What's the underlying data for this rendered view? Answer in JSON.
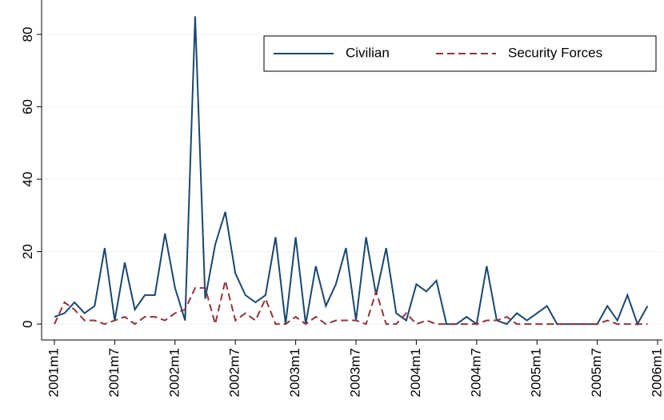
{
  "chart_data": {
    "type": "line",
    "categories": [
      "2001m1",
      null,
      null,
      null,
      null,
      null,
      "2001m7",
      null,
      null,
      null,
      null,
      null,
      "2002m1",
      null,
      null,
      null,
      null,
      null,
      "2002m7",
      null,
      null,
      null,
      null,
      null,
      "2003m1",
      null,
      null,
      null,
      null,
      null,
      "2003m7",
      null,
      null,
      null,
      null,
      null,
      "2004m1",
      null,
      null,
      null,
      null,
      null,
      "2004m7",
      null,
      null,
      null,
      null,
      null,
      "2005m1",
      null,
      null,
      null,
      null,
      null,
      "2005m7",
      null,
      null,
      null,
      null,
      null,
      "2006m1"
    ],
    "series": [
      {
        "name": "Civilian",
        "color": "#1a476f",
        "dash": false,
        "values": [
          2,
          3,
          6,
          3,
          5,
          21,
          1,
          17,
          4,
          8,
          8,
          25,
          10,
          1,
          85,
          7,
          22,
          31,
          14,
          8,
          6,
          8,
          24,
          0,
          24,
          0,
          16,
          5,
          11,
          21,
          1,
          24,
          8,
          21,
          3,
          1,
          11,
          9,
          12,
          0,
          0,
          2,
          0,
          16,
          1,
          0,
          3,
          1,
          3,
          5,
          0,
          0,
          0,
          0,
          0,
          5,
          1,
          8,
          0,
          5,
          null
        ]
      },
      {
        "name": "Security Forces",
        "color": "#90353b",
        "dash": true,
        "values": [
          0,
          6,
          4,
          1,
          1,
          0,
          1,
          2,
          0,
          2,
          2,
          1,
          3,
          4,
          10,
          10,
          0,
          12,
          1,
          3,
          1,
          7,
          0,
          0,
          2,
          0,
          2,
          0,
          1,
          1,
          1,
          0,
          9,
          0,
          0,
          3,
          0,
          1,
          0,
          0,
          0,
          0,
          0,
          1,
          1,
          2,
          0,
          0,
          0,
          0,
          0,
          0,
          0,
          0,
          0,
          1,
          0,
          0,
          0,
          0,
          null
        ]
      }
    ],
    "ylim": [
      -4.4,
      89.5
    ],
    "yticks": [
      0,
      20,
      40,
      60,
      80
    ],
    "grid": true,
    "legend": "top-right"
  }
}
